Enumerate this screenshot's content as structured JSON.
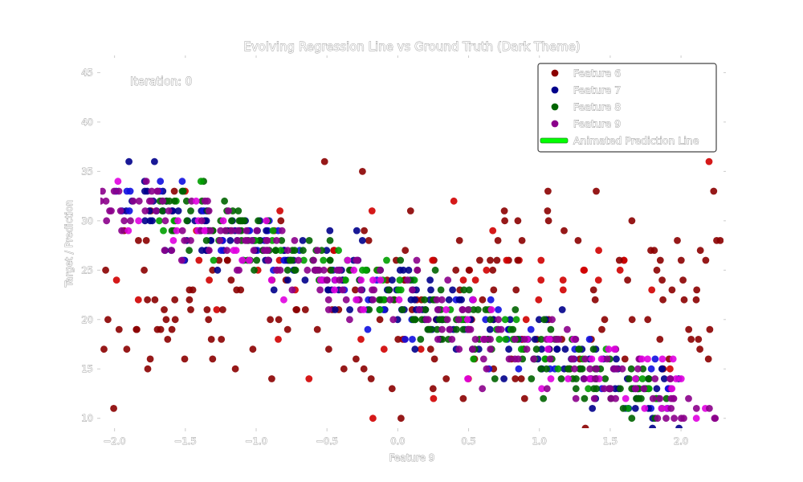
{
  "chart_data": {
    "type": "scatter",
    "title": "Evolving Regression Line vs Ground Truth (Dark Theme)",
    "xlabel": "Feature 9",
    "ylabel": "Target / Prediction",
    "xlim": [
      -2.1,
      2.3
    ],
    "ylim": [
      9.0,
      46.5
    ],
    "xticks": [
      "−2.0",
      "−1.5",
      "−1.0",
      "−0.5",
      "0.0",
      "0.5",
      "1.0",
      "1.5",
      "2.0"
    ],
    "xtick_values": [
      -2.0,
      -1.5,
      -1.0,
      -0.5,
      0.0,
      0.5,
      1.0,
      1.5,
      2.0
    ],
    "yticks": [
      "10",
      "15",
      "20",
      "25",
      "30",
      "35",
      "40",
      "45"
    ],
    "ytick_values": [
      10,
      15,
      20,
      25,
      30,
      35,
      40,
      45
    ],
    "grid": false,
    "legend_position": "top-right",
    "annotation": "Iteration: 0",
    "series": [
      {
        "name": "Feature 6",
        "color": "#8b0000",
        "highlight": "#d00000",
        "trend": {
          "slope": 0.0,
          "intercept": 22.5,
          "spread": 9.5
        },
        "n": 240,
        "x_range": [
          -2.1,
          2.3
        ]
      },
      {
        "name": "Feature 7",
        "color": "#00008b",
        "highlight": "#1010e0",
        "trend": {
          "slope": -5.4,
          "intercept": 22.0,
          "spread": 3.2
        },
        "n": 260,
        "x_range": [
          -2.0,
          2.0
        ]
      },
      {
        "name": "Feature 8",
        "color": "#006400",
        "highlight": "#00a000",
        "trend": {
          "slope": -5.6,
          "intercept": 22.5,
          "spread": 3.0
        },
        "n": 240,
        "x_range": [
          -1.7,
          1.9
        ]
      },
      {
        "name": "Feature 9",
        "color": "#8b008b",
        "highlight": "#e000e0",
        "trend": {
          "slope": -5.0,
          "intercept": 22.0,
          "spread": 3.0
        },
        "n": 260,
        "x_range": [
          -2.1,
          2.3
        ]
      }
    ],
    "line": {
      "name": "Animated Prediction Line",
      "color": "#00ff00"
    }
  }
}
